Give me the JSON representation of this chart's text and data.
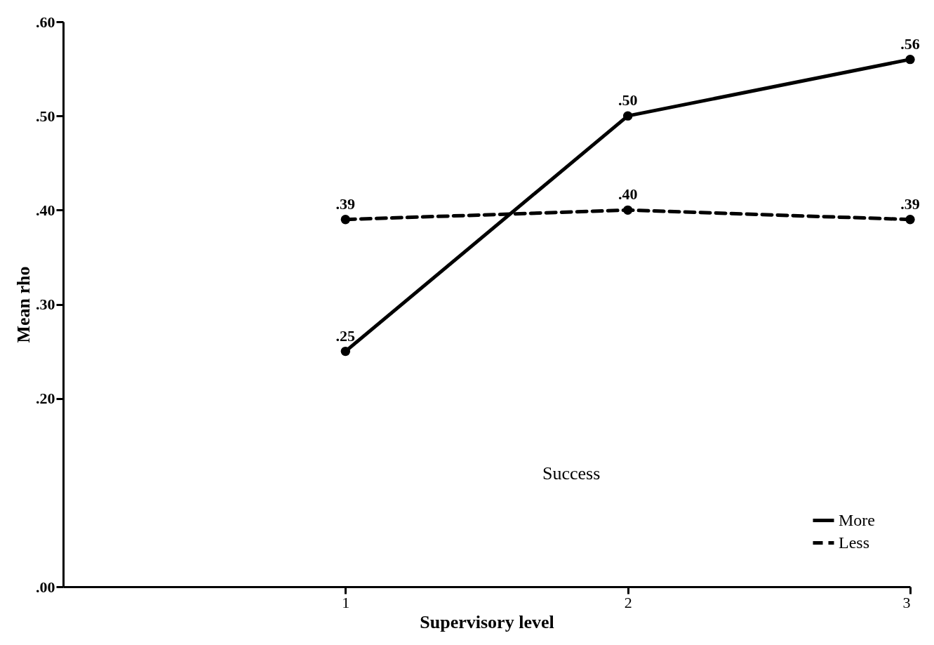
{
  "chart_data": {
    "type": "line",
    "xlabel": "Supervisory level",
    "ylabel": "Mean rho",
    "x": [
      1,
      2,
      3
    ],
    "series": [
      {
        "name": "More",
        "color": "#000000",
        "line_style": "solid",
        "values": [
          0.25,
          0.5,
          0.56
        ],
        "value_labels": [
          ".25",
          ".50",
          ".56"
        ]
      },
      {
        "name": "Less",
        "color": "#000000",
        "line_style": "dashed",
        "values": [
          0.39,
          0.4,
          0.39
        ],
        "value_labels": [
          ".39",
          ".40",
          ".39"
        ]
      }
    ],
    "xlim": [
      0,
      3
    ],
    "xticks": [
      1,
      2,
      3
    ],
    "ylim": [
      0,
      0.6
    ],
    "yticks": [
      {
        "value": 0,
        "label": ".00"
      },
      {
        "value": 0.2,
        "label": ".20"
      },
      {
        "value": 0.3,
        "label": ".30"
      },
      {
        "value": 0.4,
        "label": ".40"
      },
      {
        "value": 0.5,
        "label": ".50"
      },
      {
        "value": 0.6,
        "label": ".60"
      }
    ],
    "annotations": [
      "Success"
    ],
    "marker": "circle",
    "legend": "bottom right",
    "grid": false
  }
}
